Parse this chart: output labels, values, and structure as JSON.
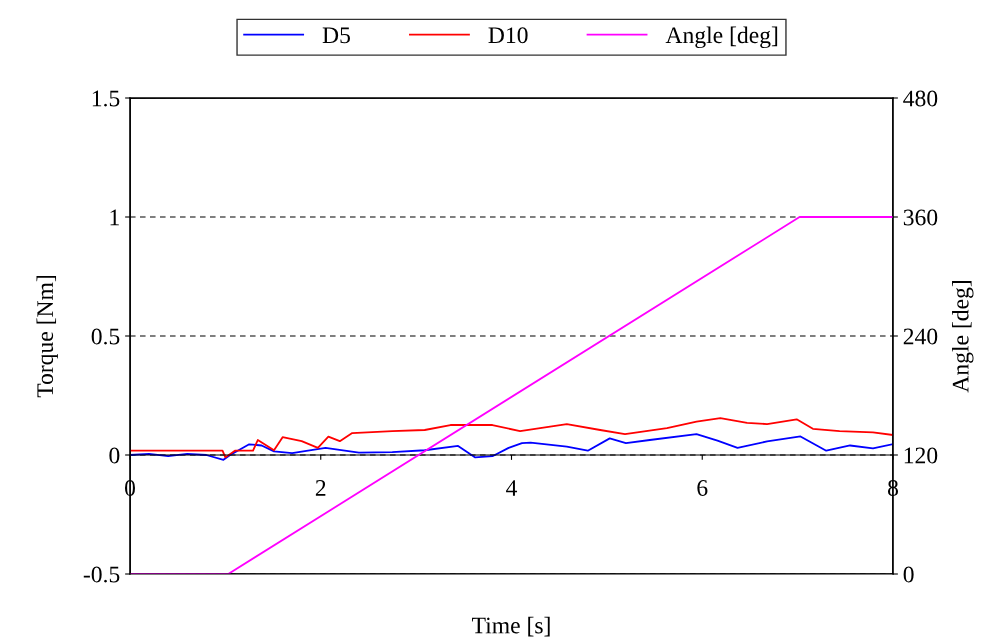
{
  "chart_data": {
    "type": "line",
    "xlabel": "Time [s]",
    "ylabel": "Torque [Nm]",
    "y2label": "Angle [deg]",
    "xlim": [
      0,
      8
    ],
    "xticks": [
      0,
      2,
      4,
      6,
      8
    ],
    "ylim": [
      -0.5,
      1.5
    ],
    "yticks": [
      -0.5,
      0,
      0.5,
      1,
      1.5
    ],
    "y2lim": [
      0,
      480
    ],
    "y2ticks": [
      0,
      120,
      240,
      360,
      480
    ],
    "grid": "y",
    "line_style": "solid",
    "legend": "top",
    "marker": "none",
    "series": [
      {
        "name": "D5",
        "color": "#0000ff",
        "x": [
          0,
          0.2,
          0.4,
          0.6,
          0.8,
          0.98,
          1.05,
          1.25,
          1.38,
          1.51,
          1.7,
          2.05,
          2.4,
          2.75,
          3.09,
          3.44,
          3.62,
          3.8,
          3.97,
          4.11,
          4.2,
          4.58,
          4.8,
          5.03,
          5.2,
          5.45,
          5.94,
          6.16,
          6.37,
          6.68,
          7.03,
          7.3,
          7.55,
          7.79,
          8
        ],
        "values": [
          0.0,
          0.005,
          -0.005,
          0.005,
          0.0,
          -0.02,
          0.0,
          0.045,
          0.04,
          0.015,
          0.008,
          0.03,
          0.01,
          0.012,
          0.02,
          0.038,
          -0.01,
          -0.005,
          0.03,
          0.05,
          0.052,
          0.035,
          0.018,
          0.07,
          0.05,
          0.063,
          0.088,
          0.06,
          0.03,
          0.057,
          0.078,
          0.018,
          0.04,
          0.028,
          0.046
        ]
      },
      {
        "name": "D10",
        "color": "#ff0000",
        "x": [
          0,
          0.97,
          1.0,
          1.1,
          1.29,
          1.34,
          1.51,
          1.6,
          1.8,
          1.97,
          2.08,
          2.2,
          2.33,
          2.75,
          3.09,
          3.36,
          3.8,
          4.09,
          4.58,
          4.93,
          5.19,
          5.63,
          5.94,
          6.19,
          6.47,
          6.68,
          6.99,
          7.16,
          7.44,
          7.79,
          8
        ],
        "values": [
          0.018,
          0.018,
          -0.01,
          0.018,
          0.018,
          0.063,
          0.02,
          0.075,
          0.058,
          0.03,
          0.077,
          0.058,
          0.092,
          0.1,
          0.105,
          0.126,
          0.126,
          0.1,
          0.13,
          0.105,
          0.088,
          0.113,
          0.14,
          0.155,
          0.135,
          0.13,
          0.15,
          0.11,
          0.1,
          0.095,
          0.084
        ]
      },
      {
        "name": "Angle [deg]",
        "color": "#ff00ff",
        "axis": "y2",
        "x": [
          0,
          1.03,
          7.02,
          8
        ],
        "values": [
          0,
          0,
          360,
          360
        ]
      }
    ]
  }
}
